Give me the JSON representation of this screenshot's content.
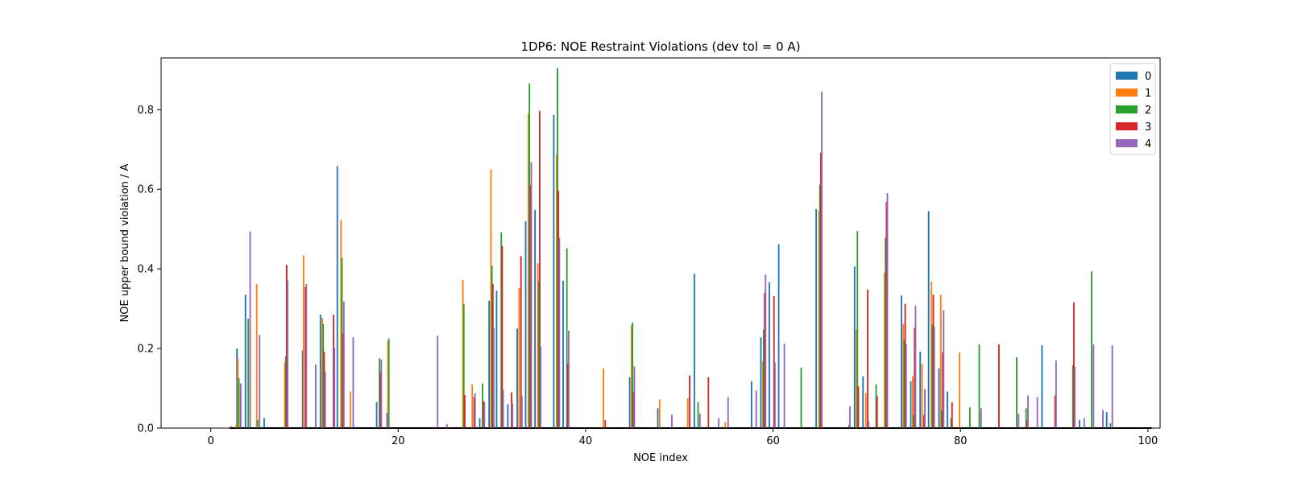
{
  "chart_data": {
    "type": "bar",
    "title": "1DP6: NOE Restraint Violations (dev tol = 0 A)",
    "xlabel": "NOE index",
    "ylabel": "NOE upper bound violation / A",
    "xlim": [
      -5.3,
      101.3
    ],
    "ylim": [
      0,
      0.93
    ],
    "x_ticks": [
      0,
      20,
      40,
      60,
      80,
      100
    ],
    "y_ticks": [
      0.0,
      0.2,
      0.4,
      0.6,
      0.8
    ],
    "grid": false,
    "legend_position": "upper right",
    "bar_group_width": 0.8,
    "series": [
      {
        "name": "0",
        "color": "#1f77b4",
        "points": [
          [
            2.8,
            0.2
          ],
          [
            3.7,
            0.335
          ],
          [
            5.7,
            0.025
          ],
          [
            9.8,
            0.195
          ],
          [
            11.7,
            0.285
          ],
          [
            13.5,
            0.658
          ],
          [
            17.7,
            0.065
          ],
          [
            28.7,
            0.025
          ],
          [
            29.7,
            0.32
          ],
          [
            30.5,
            0.345
          ],
          [
            31.7,
            0.06
          ],
          [
            32.7,
            0.25
          ],
          [
            33.6,
            0.52
          ],
          [
            34.6,
            0.548
          ],
          [
            36.6,
            0.787
          ],
          [
            37.6,
            0.37
          ],
          [
            44.7,
            0.128
          ],
          [
            47.7,
            0.05
          ],
          [
            51.6,
            0.388
          ],
          [
            57.7,
            0.118
          ],
          [
            58.7,
            0.228
          ],
          [
            59.6,
            0.366
          ],
          [
            60.6,
            0.462
          ],
          [
            64.6,
            0.55
          ],
          [
            68.7,
            0.406
          ],
          [
            69.6,
            0.13
          ],
          [
            73.7,
            0.333
          ],
          [
            74.7,
            0.118
          ],
          [
            75.7,
            0.192
          ],
          [
            76.6,
            0.545
          ],
          [
            77.7,
            0.15
          ],
          [
            78.6,
            0.092
          ],
          [
            88.7,
            0.208
          ],
          [
            92.7,
            0.02
          ],
          [
            95.6,
            0.04
          ]
        ]
      },
      {
        "name": "1",
        "color": "#ff7f0e",
        "points": [
          [
            2.7,
            0.008
          ],
          [
            2.9,
            0.175
          ],
          [
            4.9,
            0.362
          ],
          [
            7.9,
            0.165
          ],
          [
            9.9,
            0.434
          ],
          [
            11.9,
            0.277
          ],
          [
            13.9,
            0.523
          ],
          [
            14.9,
            0.092
          ],
          [
            18.9,
            0.218
          ],
          [
            26.9,
            0.372
          ],
          [
            27.9,
            0.11
          ],
          [
            29.9,
            0.65
          ],
          [
            32.9,
            0.352
          ],
          [
            33.9,
            0.79
          ],
          [
            34.9,
            0.414
          ],
          [
            36.9,
            0.688
          ],
          [
            41.9,
            0.15
          ],
          [
            44.9,
            0.258
          ],
          [
            47.9,
            0.072
          ],
          [
            50.9,
            0.075
          ],
          [
            54.9,
            0.015
          ],
          [
            58.9,
            0.168
          ],
          [
            64.9,
            0.545
          ],
          [
            68.9,
            0.248
          ],
          [
            69.9,
            0.088
          ],
          [
            71.9,
            0.39
          ],
          [
            73.9,
            0.262
          ],
          [
            74.9,
            0.13
          ],
          [
            75.9,
            0.162
          ],
          [
            76.9,
            0.368
          ],
          [
            77.9,
            0.335
          ],
          [
            79.9,
            0.19
          ]
        ]
      },
      {
        "name": "2",
        "color": "#2ca02c",
        "points": [
          [
            3.0,
            0.125
          ],
          [
            4.0,
            0.275
          ],
          [
            5.0,
            0.02
          ],
          [
            8.0,
            0.18
          ],
          [
            12.0,
            0.262
          ],
          [
            14.0,
            0.428
          ],
          [
            18.0,
            0.175
          ],
          [
            19.0,
            0.225
          ],
          [
            27.0,
            0.312
          ],
          [
            29.0,
            0.112
          ],
          [
            30.0,
            0.408
          ],
          [
            31.0,
            0.492
          ],
          [
            34.0,
            0.866
          ],
          [
            35.0,
            0.37
          ],
          [
            37.0,
            0.905
          ],
          [
            38.0,
            0.452
          ],
          [
            45.0,
            0.265
          ],
          [
            52.0,
            0.065
          ],
          [
            59.0,
            0.248
          ],
          [
            63.0,
            0.152
          ],
          [
            65.0,
            0.612
          ],
          [
            68.1,
            0.008
          ],
          [
            69.0,
            0.495
          ],
          [
            71.0,
            0.11
          ],
          [
            72.0,
            0.478
          ],
          [
            74.0,
            0.222
          ],
          [
            75.0,
            0.032
          ],
          [
            77.0,
            0.26
          ],
          [
            78.0,
            0.045
          ],
          [
            79.0,
            0.025
          ],
          [
            81.0,
            0.052
          ],
          [
            82.0,
            0.21
          ],
          [
            86.0,
            0.178
          ],
          [
            87.0,
            0.05
          ],
          [
            92.0,
            0.158
          ],
          [
            94.0,
            0.394
          ],
          [
            96.0,
            0.012
          ]
        ]
      },
      {
        "name": "3",
        "color": "#d62728",
        "points": [
          [
            8.1,
            0.41
          ],
          [
            10.1,
            0.355
          ],
          [
            12.1,
            0.192
          ],
          [
            13.1,
            0.285
          ],
          [
            14.1,
            0.238
          ],
          [
            18.1,
            0.14
          ],
          [
            27.1,
            0.083
          ],
          [
            28.1,
            0.078
          ],
          [
            29.1,
            0.068
          ],
          [
            30.1,
            0.362
          ],
          [
            31.1,
            0.457
          ],
          [
            32.1,
            0.09
          ],
          [
            33.1,
            0.432
          ],
          [
            34.1,
            0.61
          ],
          [
            35.1,
            0.797
          ],
          [
            37.1,
            0.596
          ],
          [
            38.1,
            0.162
          ],
          [
            42.1,
            0.02
          ],
          [
            45.1,
            0.09
          ],
          [
            51.1,
            0.132
          ],
          [
            53.1,
            0.128
          ],
          [
            59.1,
            0.34
          ],
          [
            60.1,
            0.332
          ],
          [
            65.1,
            0.692
          ],
          [
            69.1,
            0.105
          ],
          [
            70.1,
            0.348
          ],
          [
            71.1,
            0.08
          ],
          [
            72.1,
            0.568
          ],
          [
            74.1,
            0.312
          ],
          [
            75.1,
            0.252
          ],
          [
            76.1,
            0.032
          ],
          [
            77.1,
            0.335
          ],
          [
            78.1,
            0.19
          ],
          [
            79.1,
            0.065
          ],
          [
            84.1,
            0.21
          ],
          [
            87.1,
            0.02
          ],
          [
            90.1,
            0.082
          ],
          [
            92.1,
            0.316
          ]
        ]
      },
      {
        "name": "4",
        "color": "#9467bd",
        "points": [
          [
            2.2,
            0.005
          ],
          [
            3.2,
            0.112
          ],
          [
            4.2,
            0.494
          ],
          [
            5.2,
            0.234
          ],
          [
            8.2,
            0.37
          ],
          [
            10.2,
            0.362
          ],
          [
            11.2,
            0.16
          ],
          [
            12.2,
            0.142
          ],
          [
            13.2,
            0.202
          ],
          [
            14.2,
            0.318
          ],
          [
            15.2,
            0.228
          ],
          [
            18.2,
            0.172
          ],
          [
            18.8,
            0.038
          ],
          [
            24.2,
            0.232
          ],
          [
            25.2,
            0.01
          ],
          [
            28.2,
            0.088
          ],
          [
            29.2,
            0.065
          ],
          [
            30.2,
            0.252
          ],
          [
            31.2,
            0.096
          ],
          [
            32.2,
            0.062
          ],
          [
            33.2,
            0.08
          ],
          [
            34.2,
            0.668
          ],
          [
            35.2,
            0.205
          ],
          [
            37.2,
            0.478
          ],
          [
            38.2,
            0.245
          ],
          [
            45.2,
            0.155
          ],
          [
            49.2,
            0.034
          ],
          [
            52.2,
            0.036
          ],
          [
            54.2,
            0.025
          ],
          [
            55.2,
            0.078
          ],
          [
            58.2,
            0.094
          ],
          [
            59.2,
            0.386
          ],
          [
            60.2,
            0.165
          ],
          [
            61.2,
            0.212
          ],
          [
            65.2,
            0.845
          ],
          [
            68.2,
            0.054
          ],
          [
            70.2,
            0.018
          ],
          [
            72.2,
            0.59
          ],
          [
            74.2,
            0.21
          ],
          [
            75.2,
            0.308
          ],
          [
            76.2,
            0.098
          ],
          [
            77.2,
            0.255
          ],
          [
            78.2,
            0.296
          ],
          [
            82.2,
            0.05
          ],
          [
            86.2,
            0.036
          ],
          [
            87.2,
            0.082
          ],
          [
            88.2,
            0.078
          ],
          [
            90.2,
            0.17
          ],
          [
            92.2,
            0.154
          ],
          [
            93.2,
            0.025
          ],
          [
            94.2,
            0.21
          ],
          [
            95.2,
            0.045
          ],
          [
            96.2,
            0.208
          ]
        ]
      }
    ]
  }
}
